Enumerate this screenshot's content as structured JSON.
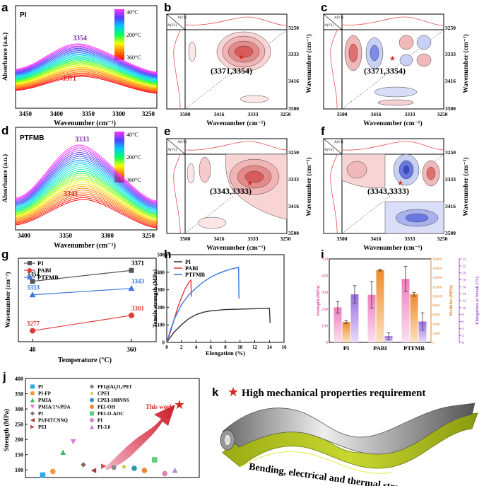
{
  "panel_letters": [
    "a",
    "b",
    "c",
    "d",
    "e",
    "f",
    "g",
    "h",
    "i",
    "j",
    "k"
  ],
  "panels": {
    "a": {
      "sample": "PI",
      "ylabel": "Absorbance (a.u.)",
      "xlabel": "Wavenumber (cm⁻¹)",
      "ticks": [
        "3450",
        "3400",
        "3350",
        "3300",
        "3250"
      ],
      "peak_top": "3354",
      "peak_bottom": "3371",
      "temp_high": "40°C",
      "temp_mid": "200°C",
      "temp_low": "360°C"
    },
    "b": {
      "xlabel": "Wavenumber (cm⁻¹)",
      "ylabel": "Wavenumber (cm⁻¹)",
      "ticks_x": [
        "3500",
        "3416",
        "3333",
        "3250"
      ],
      "ticks_y": [
        "3250",
        "3333",
        "3416",
        "3500"
      ],
      "annotation": "(3371,3354)",
      "av1": "A(V1)",
      "av2": "A(V2)"
    },
    "c": {
      "xlabel": "Wavenumber (cm⁻¹)",
      "ylabel": "Wavenumber (cm⁻¹)",
      "ticks_x": [
        "3500",
        "3416",
        "3333",
        "3250"
      ],
      "ticks_y": [
        "3250",
        "3333",
        "3416",
        "3500"
      ],
      "annotation": "(3371,3354)",
      "av1": "A(V1)",
      "av2": "A(V2)"
    },
    "d": {
      "sample": "PTFMB",
      "ylabel": "Absorbance (a.u.)",
      "xlabel": "Wavenumber (cm⁻¹)",
      "ticks": [
        "3400",
        "3350",
        "3300",
        "3250"
      ],
      "peak_top": "3333",
      "peak_bottom": "3343",
      "temp_high": "40°C",
      "temp_mid": "200°C",
      "temp_low": "360°C"
    },
    "e": {
      "xlabel": "Wavenumber (cm⁻¹)",
      "ylabel": "Wavenumber (cm⁻¹)",
      "ticks_x": [
        "3500",
        "3416",
        "3333",
        "3250"
      ],
      "ticks_y": [
        "3250",
        "3333",
        "3416",
        "3500"
      ],
      "annotation": "(3343,3333)",
      "av1": "A(V1)",
      "av2": "A(V2)"
    },
    "f": {
      "xlabel": "Wavenumber (cm⁻¹)",
      "ylabel": "Wavenumber (cm⁻¹)",
      "ticks_x": [
        "3500",
        "3416",
        "3333",
        "3250"
      ],
      "ticks_y": [
        "3250",
        "3333",
        "3416",
        "3500"
      ],
      "annotation": "(3343,3333)",
      "av1": "A(V1)",
      "av2": "A(V2)"
    },
    "k": {
      "title": "High mechanical properties requirement",
      "subtitle": "Bending, electrical and thermal stresses"
    }
  },
  "chart_data": [
    {
      "panel": "g",
      "type": "line",
      "xlabel": "Temperature (°C)",
      "ylabel": "Wavenumber (cm⁻¹)",
      "categories": [
        "40",
        "360"
      ],
      "series": [
        {
          "name": "PI",
          "color": "#555555",
          "marker": "square",
          "values": [
            3354,
            3371
          ],
          "labels": [
            "3354",
            "3371"
          ]
        },
        {
          "name": "PABI",
          "color": "#e03a3a",
          "marker": "circle",
          "values": [
            3277,
            3301
          ],
          "labels": [
            "3277",
            "3301"
          ]
        },
        {
          "name": "PTFMB",
          "color": "#3b78e0",
          "marker": "triangle",
          "values": [
            3333,
            3343
          ],
          "labels": [
            "3333",
            "3343"
          ]
        }
      ],
      "ylim": [
        3260,
        3390
      ]
    },
    {
      "panel": "h",
      "type": "line",
      "xlabel": "Elongation (%)",
      "ylabel": "Tensile strength (MPa)",
      "xticks": [
        "0",
        "2",
        "4",
        "6",
        "8",
        "10",
        "12",
        "14",
        "16"
      ],
      "yticks": [
        "0",
        "100",
        "200",
        "300",
        "400",
        "500"
      ],
      "xlim": [
        0,
        16
      ],
      "ylim": [
        0,
        500
      ],
      "series": [
        {
          "name": "PI",
          "color": "#333333",
          "points": [
            [
              0,
              0
            ],
            [
              0.5,
              30
            ],
            [
              1,
              58
            ],
            [
              2,
              100
            ],
            [
              3,
              135
            ],
            [
              4,
              158
            ],
            [
              5,
              172
            ],
            [
              6,
              180
            ],
            [
              8,
              187
            ],
            [
              10,
              190
            ],
            [
              12,
              192
            ],
            [
              14,
              195
            ],
            [
              14.1,
              110
            ]
          ]
        },
        {
          "name": "PABI",
          "color": "#e03a3a",
          "points": [
            [
              0,
              0
            ],
            [
              0.5,
              60
            ],
            [
              1,
              130
            ],
            [
              1.5,
              200
            ],
            [
              2,
              255
            ],
            [
              2.5,
              305
            ],
            [
              3,
              340
            ],
            [
              3.3,
              355
            ],
            [
              3.35,
              260
            ]
          ]
        },
        {
          "name": "PTFMB",
          "color": "#3b78e0",
          "points": [
            [
              0,
              0
            ],
            [
              0.5,
              70
            ],
            [
              1,
              130
            ],
            [
              2,
              215
            ],
            [
              3,
              270
            ],
            [
              4,
              310
            ],
            [
              5,
              345
            ],
            [
              6,
              372
            ],
            [
              7,
              392
            ],
            [
              8,
              408
            ],
            [
              9,
              420
            ],
            [
              9.8,
              428
            ],
            [
              9.85,
              250
            ]
          ]
        }
      ]
    },
    {
      "panel": "i",
      "type": "bar",
      "categories": [
        "PI",
        "PABI",
        "PTFMB"
      ],
      "axes": [
        {
          "name": "Strength (MPa)",
          "color": "#e0489b",
          "ticks": [
            "0",
            "100",
            "200",
            "300",
            "400",
            "500"
          ],
          "ylim": [
            0,
            500
          ]
        },
        {
          "name": "Modulus (MPa)",
          "color": "#e8822a",
          "ticks": [
            "0",
            "2000",
            "4000",
            "6000",
            "8000",
            "10000",
            "12000",
            "14000",
            "16000",
            "18000"
          ],
          "ylim": [
            0,
            18000
          ]
        },
        {
          "name": "Elongation at break (%)",
          "color": "#9b4fd6",
          "ticks": [
            "0",
            "2",
            "4",
            "6",
            "8",
            "10",
            "12",
            "14",
            "16",
            "18",
            "20",
            "22",
            "24"
          ],
          "ylim": [
            0,
            24
          ]
        }
      ],
      "series": [
        {
          "name": "Strength",
          "color": "#f2a0cf",
          "values": [
            210,
            285,
            380
          ],
          "err": [
            35,
            80,
            75
          ]
        },
        {
          "name": "Modulus",
          "color": "#f3b070",
          "values": [
            4400,
            15600,
            10400
          ],
          "err": [
            300,
            200,
            400
          ]
        },
        {
          "name": "Elongation",
          "color": "#b89ae6",
          "values": [
            13.8,
            1.8,
            6.0
          ],
          "err": [
            2.5,
            1.0,
            2.5
          ]
        }
      ]
    },
    {
      "panel": "j",
      "type": "scatter",
      "ylabel": "Strength (MPa)",
      "yticks": [
        "100",
        "150",
        "200",
        "250",
        "300",
        "350",
        "400"
      ],
      "ylim": [
        75,
        400
      ],
      "arrow_label": "This work",
      "legend_left": [
        "PI",
        "PI-FP",
        "PMIA",
        "PMIA/1%PDA",
        "PI",
        "PI/F6TCNNQ",
        "PEI"
      ],
      "legend_right": [
        "PFI@Al₂O₃/PEI",
        "CPEI",
        "CPEI-10BNNS",
        "PEI-OH",
        "PEI-O-AOC",
        "PI",
        "PI-3.0"
      ],
      "points": [
        {
          "label": "PI",
          "value": 83,
          "color": "#2ea8e6",
          "shape": "square",
          "pos": 1
        },
        {
          "label": "PI-FP",
          "value": 95,
          "color": "#f09a3a",
          "shape": "circle",
          "pos": 2
        },
        {
          "label": "PMIA",
          "value": 158,
          "color": "#3cba5a",
          "shape": "triangle",
          "pos": 3
        },
        {
          "label": "PMIA/1%PDA",
          "value": 192,
          "color": "#e07ae0",
          "shape": "tri-down",
          "pos": 4
        },
        {
          "label": "PI",
          "value": 117,
          "color": "#8a6a60",
          "shape": "diamond",
          "pos": 5
        },
        {
          "label": "PI/F6TCNNQ",
          "value": 98,
          "color": "#a04040",
          "shape": "tri-left",
          "pos": 6
        },
        {
          "label": "PEI",
          "value": 112,
          "color": "#e04a4a",
          "shape": "tri-right",
          "pos": 7
        },
        {
          "label": "PFI@Al₂O₃/PEI",
          "value": 108,
          "color": "#888888",
          "shape": "hexagon",
          "pos": 8
        },
        {
          "label": "CPEI",
          "value": 110,
          "color": "#d4c030",
          "shape": "star",
          "pos": 9
        },
        {
          "label": "CPEI-10BNNS",
          "value": 105,
          "color": "#2a9aa8",
          "shape": "circle",
          "pos": 10
        },
        {
          "label": "PEI-OH",
          "value": 98,
          "color": "#e88a30",
          "shape": "circle",
          "pos": 11
        },
        {
          "label": "PEI-O-AOC",
          "value": 133,
          "color": "#5ad07a",
          "shape": "square",
          "pos": 12
        },
        {
          "label": "PI",
          "value": 88,
          "color": "#e080c0",
          "shape": "circle",
          "pos": 13
        },
        {
          "label": "PI-3.0",
          "value": 99,
          "color": "#c080e0",
          "shape": "triangle",
          "pos": 14
        }
      ]
    }
  ]
}
